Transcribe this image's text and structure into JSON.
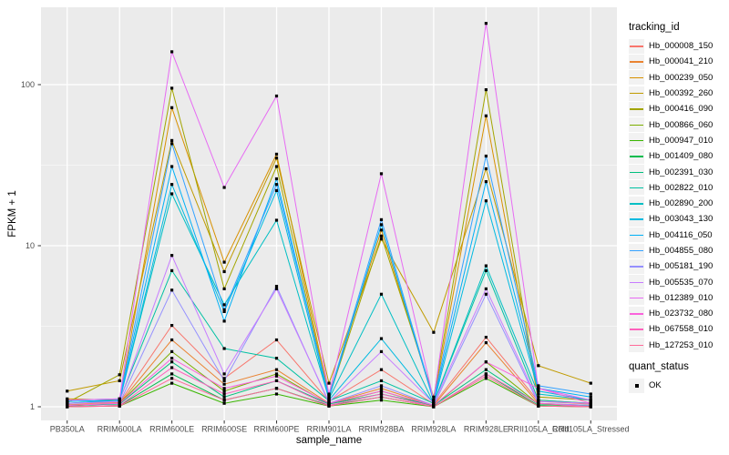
{
  "axes": {
    "x_title": "sample_name",
    "y_title": "FPKM + 1"
  },
  "legend": {
    "tracking_title": "tracking_id",
    "quant_title": "quant_status",
    "quant_ok_label": "OK"
  },
  "colors": {
    "panel_bg": "#EBEBEB",
    "grid": "#FFFFFF",
    "tick_label": "#4D4D4D",
    "tick_mark": "#333333",
    "point": "#000000",
    "legend_key_bg": "#F2F2F2"
  },
  "chart_data": {
    "type": "line",
    "title": "",
    "xlabel": "sample_name",
    "ylabel": "FPKM + 1",
    "y_scale": "log10",
    "y_ticks": [
      1,
      10,
      100
    ],
    "y_minor_ticks": [
      3.1623,
      31.6228
    ],
    "ylim": [
      0.93,
      300
    ],
    "grid": true,
    "legend_position": "right",
    "point_marker": "black-square",
    "quant_status": "OK",
    "categories": [
      "PB350LA",
      "RRIM600LA",
      "RRIM600LE",
      "RRIM600SE",
      "RRIM600PE",
      "RRIM901LA",
      "RRIM928BA",
      "RRIM928LA",
      "RRIM928LE",
      "RRII105LA_Cold",
      "RRII105LA_Stressed"
    ],
    "series": [
      {
        "name": "Hb_000008_150",
        "color": "#F8766D",
        "values": [
          1.05,
          1.06,
          3.2,
          1.5,
          2.6,
          1.08,
          1.7,
          1.04,
          2.7,
          1.08,
          1.04
        ]
      },
      {
        "name": "Hb_000041_210",
        "color": "#EA8331",
        "values": [
          1.03,
          1.05,
          2.6,
          1.38,
          1.7,
          1.05,
          1.3,
          1.02,
          2.5,
          1.05,
          1.02
        ]
      },
      {
        "name": "Hb_000239_050",
        "color": "#D89000",
        "values": [
          1.12,
          1.1,
          72,
          7.9,
          37,
          1.18,
          12.5,
          1.1,
          64,
          1.1,
          1.05
        ]
      },
      {
        "name": "Hb_000392_260",
        "color": "#C09B00",
        "values": [
          1.25,
          1.45,
          45,
          6.9,
          35,
          1.4,
          11,
          2.9,
          30,
          1.8,
          1.4
        ]
      },
      {
        "name": "Hb_000416_090",
        "color": "#A3A500",
        "values": [
          1.06,
          1.58,
          95,
          5.4,
          31,
          1.14,
          11.5,
          1.15,
          93,
          1.15,
          1.1
        ]
      },
      {
        "name": "Hb_000866_060",
        "color": "#7CAE00",
        "values": [
          1.01,
          1.05,
          2.2,
          1.25,
          1.6,
          1.04,
          1.25,
          1.01,
          1.9,
          1.04,
          1.01
        ]
      },
      {
        "name": "Hb_000947_010",
        "color": "#39B600",
        "values": [
          1.0,
          1.01,
          1.4,
          1.05,
          1.2,
          1.01,
          1.1,
          1.0,
          1.5,
          1.01,
          1.0
        ]
      },
      {
        "name": "Hb_001409_080",
        "color": "#00BB4E",
        "values": [
          1.0,
          1.02,
          1.6,
          1.1,
          1.3,
          1.02,
          1.15,
          1.0,
          1.6,
          1.02,
          1.0
        ]
      },
      {
        "name": "Hb_002391_030",
        "color": "#00BF7D",
        "values": [
          1.02,
          1.04,
          1.9,
          1.15,
          1.45,
          1.04,
          1.2,
          1.02,
          1.7,
          1.04,
          1.02
        ]
      },
      {
        "name": "Hb_002822_010",
        "color": "#00C1A3",
        "values": [
          1.05,
          1.1,
          7.0,
          2.3,
          2.0,
          1.09,
          1.45,
          1.05,
          7.0,
          1.1,
          1.05
        ]
      },
      {
        "name": "Hb_002890_200",
        "color": "#00BFC4",
        "values": [
          1.05,
          1.1,
          21,
          4.3,
          14.4,
          1.12,
          5.0,
          1.05,
          7.5,
          1.2,
          1.1
        ]
      },
      {
        "name": "Hb_003043_130",
        "color": "#00BAE0",
        "values": [
          1.05,
          1.08,
          24,
          3.9,
          22,
          1.1,
          2.65,
          1.05,
          19,
          1.25,
          1.1
        ]
      },
      {
        "name": "Hb_004116_050",
        "color": "#00B0F6",
        "values": [
          1.08,
          1.1,
          31,
          3.4,
          26,
          1.13,
          13.5,
          1.08,
          25,
          1.3,
          1.15
        ]
      },
      {
        "name": "Hb_004855_080",
        "color": "#35A2FF",
        "values": [
          1.1,
          1.12,
          43,
          4.0,
          24,
          1.16,
          14.5,
          1.1,
          36,
          1.35,
          1.2
        ]
      },
      {
        "name": "Hb_005181_190",
        "color": "#9590FF",
        "values": [
          1.02,
          1.05,
          5.3,
          1.45,
          5.6,
          1.05,
          1.35,
          1.02,
          5.0,
          1.05,
          1.02
        ]
      },
      {
        "name": "Hb_005535_070",
        "color": "#C77CFF",
        "values": [
          1.05,
          1.08,
          8.7,
          1.6,
          5.4,
          1.07,
          2.2,
          1.05,
          5.4,
          1.08,
          1.05
        ]
      },
      {
        "name": "Hb_012389_010",
        "color": "#E76BF3",
        "values": [
          1.1,
          1.12,
          160,
          23,
          85,
          1.2,
          28,
          1.1,
          240,
          1.3,
          1.1
        ]
      },
      {
        "name": "Hb_023732_080",
        "color": "#FA62DB",
        "values": [
          1.02,
          1.05,
          2.0,
          1.3,
          1.55,
          1.05,
          1.25,
          1.02,
          1.9,
          1.3,
          1.05
        ]
      },
      {
        "name": "Hb_067558_010",
        "color": "#FF62BC",
        "values": [
          1.0,
          1.02,
          1.75,
          1.2,
          1.45,
          1.02,
          1.2,
          1.0,
          1.6,
          1.05,
          1.0
        ]
      },
      {
        "name": "Hb_127253_010",
        "color": "#FF6A98",
        "values": [
          1.0,
          1.01,
          1.5,
          1.1,
          1.3,
          1.01,
          1.15,
          1.0,
          1.55,
          1.01,
          1.0
        ]
      }
    ]
  }
}
